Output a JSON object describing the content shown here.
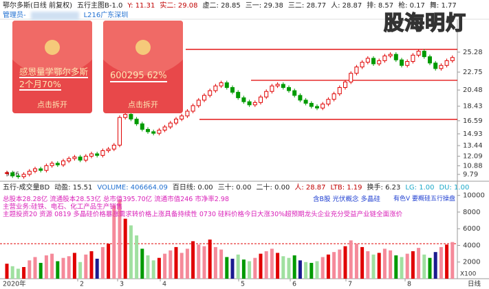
{
  "header": [
    {
      "text": "鄂尔多斯(日线 前复权)",
      "color": "#222"
    },
    {
      "text": "五行主图B-1.0",
      "color": "#222"
    },
    {
      "text": "Y: 11.31",
      "color": "#c00000"
    },
    {
      "text": "实二: 29.08",
      "color": "#c00000"
    },
    {
      "text": "虚二: 28.85",
      "color": "#222"
    },
    {
      "text": "三一: 29.38",
      "color": "#222"
    },
    {
      "text": "三二: 28.77",
      "color": "#222"
    },
    {
      "text": "人: 28.87",
      "color": "#222"
    },
    {
      "text": "排: 8.57",
      "color": "#222"
    },
    {
      "text": "枪: 0.17",
      "color": "#222"
    },
    {
      "text": "舞: 1.77",
      "color": "#222"
    }
  ],
  "subheader": [
    "管理员-",
    "L216广东深圳"
  ],
  "watermark": "股海明灯",
  "envelopes": [
    {
      "message": "感恩量学鄂尔多斯2个月70%",
      "button": "点击拆开"
    },
    {
      "message": "600295 62%",
      "button": "点击拆开"
    }
  ],
  "price_panel": {
    "ylim": [
      9.1,
      29.45
    ],
    "yticks": [
      25.28,
      22.75,
      20.48,
      18.43,
      16.59,
      14.93,
      13.44,
      12.09,
      10.88,
      9.79
    ],
    "low_label": "9.46",
    "levels": [
      25.63,
      21.71,
      16.76
    ],
    "closes": [
      10.0,
      9.6,
      9.5,
      9.8,
      10.2,
      10.5,
      10.3,
      10.9,
      11.2,
      11.0,
      11.5,
      11.8,
      12.0,
      11.6,
      12.1,
      12.4,
      12.2,
      12.8,
      13.0,
      13.5,
      17.0,
      17.4,
      16.8,
      16.2,
      15.5,
      15.2,
      15.0,
      15.4,
      15.8,
      16.3,
      16.8,
      17.2,
      17.8,
      18.5,
      19.2,
      19.8,
      20.4,
      21.0,
      21.4,
      20.8,
      20.2,
      19.5,
      19.0,
      18.6,
      18.9,
      19.6,
      20.3,
      21.0,
      21.2,
      20.8,
      20.4,
      19.8,
      19.2,
      18.8,
      18.4,
      18.2,
      18.7,
      19.3,
      20.0,
      20.8,
      21.5,
      22.6,
      23.4,
      24.0,
      24.5,
      23.8,
      24.2,
      24.8,
      25.0,
      24.3,
      23.6,
      24.1,
      24.9,
      25.4,
      24.7,
      23.9,
      23.2,
      23.6,
      24.2,
      24.6
    ]
  },
  "volume_panel": {
    "header": [
      {
        "text": "五行-成交量BD",
        "color": "#222"
      },
      {
        "text": "动盈: 15.51",
        "color": "#222"
      },
      {
        "text": "VOLUME: 406664.09",
        "color": "#1f6fd1"
      },
      {
        "text": "百日线: 0.00",
        "color": "#222"
      },
      {
        "text": "三十: 0.00",
        "color": "#222"
      },
      {
        "text": "二十: 0.00",
        "color": "#222"
      },
      {
        "text": "人: 28.87",
        "color": "#c00000"
      },
      {
        "text": "LTB: 1.19",
        "color": "#c00000"
      },
      {
        "text": "换手: 6.23",
        "color": "#222"
      },
      {
        "text": "LG: 1.00",
        "color": "#1aa8c8"
      },
      {
        "text": "DU: 1.00",
        "color": "#1aa8c8"
      }
    ],
    "info": [
      "总股本28.28亿 流通股本28.53亿 总市值395.70亿 流通市值246 市净率2.98",
      "主营业务:硅铁、电石、化工产品生产销售",
      "主题投资20 资源 0819 多晶硅价格暴涨需求转价格上涨具备持续性 0730 硅料价格今日大涨30%超预期龙头企业充分受益产业链全面涨价"
    ],
    "tags": [
      "含B股 光伏概念 多晶硅",
      "有色V 要概硅五行操盘"
    ],
    "ylim": [
      0,
      10550
    ],
    "yticks": [
      10000,
      8000,
      6000,
      4000,
      2000
    ],
    "unit": "X100",
    "ref_level": 4200,
    "volumes": [
      1800,
      1500,
      1200,
      1400,
      2200,
      2600,
      1900,
      2800,
      3000,
      2100,
      2500,
      2700,
      3100,
      2000,
      2900,
      3300,
      2400,
      3800,
      4200,
      8800,
      9500,
      7200,
      6400,
      5200,
      3600,
      2800,
      2200,
      2500,
      3000,
      3400,
      3800,
      3100,
      3600,
      4500,
      4100,
      3900,
      4700,
      3800,
      3500,
      2600,
      2400,
      2900,
      2300,
      2100,
      2500,
      3000,
      3300,
      3600,
      3100,
      2700,
      2500,
      2800,
      2200,
      2000,
      1900,
      2100,
      2600,
      2900,
      3200,
      3500,
      3900,
      4600,
      4200,
      3800,
      3300,
      2900,
      3100,
      3600,
      3400,
      2800,
      2600,
      3000,
      3300,
      3700,
      2900,
      2500,
      3200,
      3800,
      4100,
      4400
    ]
  },
  "x_axis": [
    "2020年",
    "2",
    "3",
    "4",
    "5",
    "6",
    "7",
    "8",
    "日线"
  ]
}
